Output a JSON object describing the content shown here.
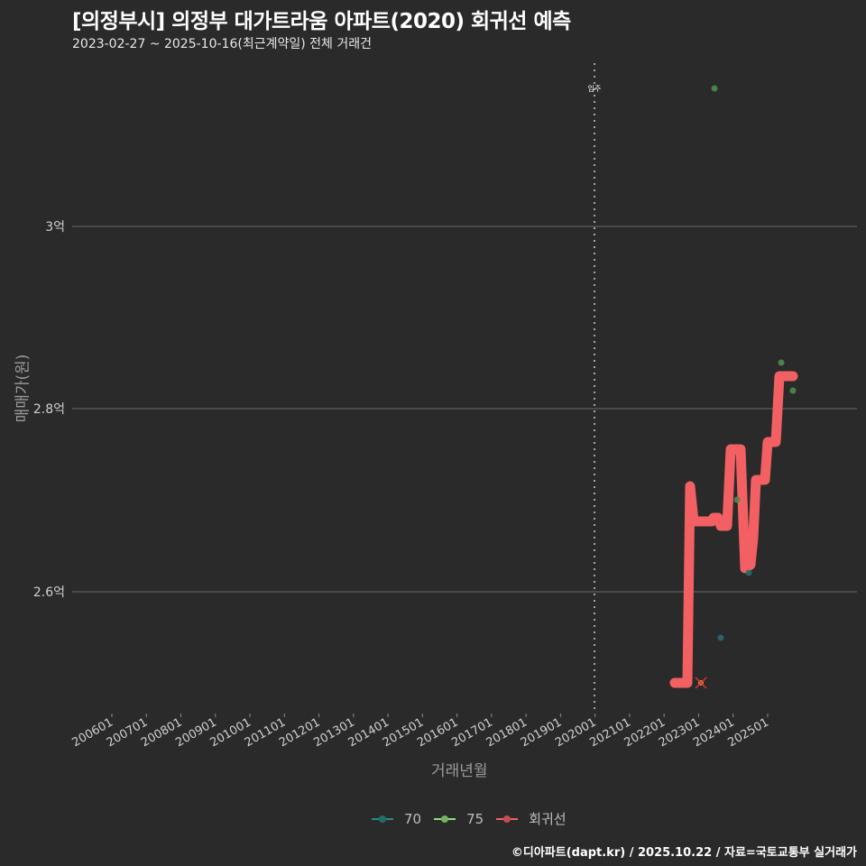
{
  "header": {
    "title": "[의정부시] 의정부 대가트라움 아파트(2020) 회귀선 예측",
    "subtitle": "2023-02-27 ~ 2025-10-16(최근계약일) 전체 거래건"
  },
  "axes": {
    "ylabel": "매매가(원)",
    "xlabel": "거래년월",
    "yticks": [
      "3억",
      "2.8억",
      "2.6억"
    ],
    "xticks": [
      "200601",
      "200701",
      "200801",
      "200901",
      "201001",
      "201101",
      "201201",
      "201301",
      "201401",
      "201501",
      "201601",
      "201701",
      "201801",
      "201901",
      "202001",
      "202101",
      "202201",
      "202301",
      "202401",
      "202501"
    ],
    "vline_label": "입주"
  },
  "legend": {
    "items": [
      {
        "label": "70",
        "color": "#2a8a82"
      },
      {
        "label": "75",
        "color": "#8ee07a"
      },
      {
        "label": "회귀선",
        "color": "#f26063"
      }
    ]
  },
  "footer": "©디아파트(dapt.kr) / 2025.10.22 / 자료=국토교통부 실거래가",
  "colors": {
    "background": "#2a2a2a",
    "grid": "#6a6a6a",
    "regression": "#f26063",
    "area70": "#2a6a66",
    "area75": "#4f8a4c"
  },
  "chart_data": {
    "type": "scatter",
    "title": "[의정부시] 의정부 대가트라움 아파트(2020) 회귀선 예측",
    "subtitle": "2023-02-27 ~ 2025-10-16(최근계약일) 전체 거래건",
    "xlabel": "거래년월",
    "ylabel": "매매가(원)",
    "x_range": [
      "200601",
      "202510"
    ],
    "ylim": [
      24700,
      31700
    ],
    "yticks": [
      {
        "label": "2.6억",
        "value": 26000
      },
      {
        "label": "2.8억",
        "value": 28000
      },
      {
        "label": "3억",
        "value": 30000
      }
    ],
    "grid": true,
    "legend_position": "bottom",
    "vline": {
      "x": "202001",
      "label": "입주"
    },
    "series": [
      {
        "name": "70",
        "type": "scatter",
        "points": [
          {
            "x": "2023-09",
            "y": 25500
          },
          {
            "x": "2024-06",
            "y": 26200
          }
        ]
      },
      {
        "name": "75",
        "type": "scatter",
        "points": [
          {
            "x": "2023-06",
            "y": 31500
          },
          {
            "x": "2024-03",
            "y": 27000
          },
          {
            "x": "2025-04",
            "y": 28500
          },
          {
            "x": "2025-07",
            "y": 28200
          }
        ]
      },
      {
        "name": "회귀선",
        "type": "line",
        "points": [
          {
            "x": "2022-09",
            "y": 25000
          },
          {
            "x": "2023-01",
            "y": 25000
          },
          {
            "x": "2023-02",
            "y": 27200
          },
          {
            "x": "2023-03",
            "y": 26700
          },
          {
            "x": "2023-06",
            "y": 26700
          },
          {
            "x": "2023-07",
            "y": 26800
          },
          {
            "x": "2023-09",
            "y": 26800
          },
          {
            "x": "2023-10",
            "y": 26700
          },
          {
            "x": "2023-12",
            "y": 26700
          },
          {
            "x": "2024-01",
            "y": 27600
          },
          {
            "x": "2024-04",
            "y": 27600
          },
          {
            "x": "2024-05",
            "y": 26200
          },
          {
            "x": "2024-07",
            "y": 26300
          },
          {
            "x": "2024-08",
            "y": 26600
          },
          {
            "x": "2024-09",
            "y": 27200
          },
          {
            "x": "2024-12",
            "y": 27200
          },
          {
            "x": "2025-01",
            "y": 27600
          },
          {
            "x": "2025-03",
            "y": 27600
          },
          {
            "x": "2025-04",
            "y": 28350
          },
          {
            "x": "2025-08",
            "y": 28350
          }
        ]
      },
      {
        "name": "latest-marker",
        "type": "cross",
        "points": [
          {
            "x": "2023-02",
            "y": 25000
          }
        ]
      }
    ]
  }
}
